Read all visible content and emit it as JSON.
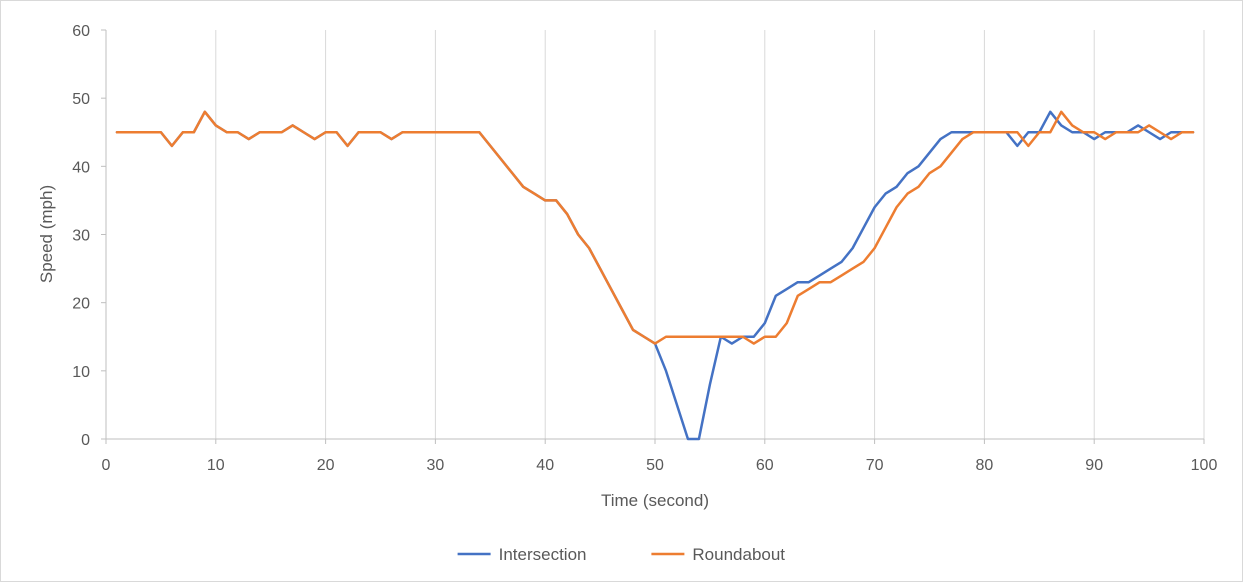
{
  "chart_data": {
    "type": "line",
    "xlabel": "Time (second)",
    "ylabel": "Speed (mph)",
    "xlim": [
      0,
      100
    ],
    "ylim": [
      0,
      60
    ],
    "xticks": [
      0,
      10,
      20,
      30,
      40,
      50,
      60,
      70,
      80,
      90,
      100
    ],
    "yticks": [
      0,
      10,
      20,
      30,
      40,
      50,
      60
    ],
    "grid": "vertical",
    "legend_position": "bottom",
    "series": [
      {
        "name": "Intersection",
        "color": "#4472c4",
        "x": [
          1,
          2,
          3,
          4,
          5,
          6,
          7,
          8,
          9,
          10,
          11,
          12,
          13,
          14,
          15,
          16,
          17,
          18,
          19,
          20,
          21,
          22,
          23,
          24,
          25,
          26,
          27,
          28,
          29,
          30,
          31,
          32,
          33,
          34,
          35,
          36,
          37,
          38,
          39,
          40,
          41,
          42,
          43,
          44,
          45,
          46,
          47,
          48,
          49,
          50,
          51,
          52,
          53,
          54,
          55,
          56,
          57,
          58,
          59,
          60,
          61,
          62,
          63,
          64,
          65,
          66,
          67,
          68,
          69,
          70,
          71,
          72,
          73,
          74,
          75,
          76,
          77,
          78,
          79,
          80,
          81,
          82,
          83,
          84,
          85,
          86,
          87,
          88,
          89,
          90,
          91,
          92,
          93,
          94,
          95,
          96,
          97,
          98,
          99
        ],
        "y": [
          45,
          45,
          45,
          45,
          45,
          43,
          45,
          45,
          48,
          46,
          45,
          45,
          44,
          45,
          45,
          45,
          46,
          45,
          44,
          45,
          45,
          43,
          45,
          45,
          45,
          44,
          45,
          45,
          45,
          45,
          45,
          45,
          45,
          45,
          43,
          41,
          39,
          37,
          36,
          35,
          35,
          33,
          30,
          28,
          25,
          22,
          19,
          16,
          15,
          14,
          10,
          5,
          0,
          0,
          8,
          15,
          14,
          15,
          15,
          17,
          21,
          22,
          23,
          23,
          24,
          25,
          26,
          28,
          31,
          34,
          36,
          37,
          39,
          40,
          42,
          44,
          45,
          45,
          45,
          45,
          45,
          45,
          43,
          45,
          45,
          48,
          46,
          45,
          45,
          44,
          45,
          45,
          45,
          46,
          45,
          44,
          45,
          45,
          45
        ]
      },
      {
        "name": "Roundabout",
        "color": "#ed7d31",
        "x": [
          1,
          2,
          3,
          4,
          5,
          6,
          7,
          8,
          9,
          10,
          11,
          12,
          13,
          14,
          15,
          16,
          17,
          18,
          19,
          20,
          21,
          22,
          23,
          24,
          25,
          26,
          27,
          28,
          29,
          30,
          31,
          32,
          33,
          34,
          35,
          36,
          37,
          38,
          39,
          40,
          41,
          42,
          43,
          44,
          45,
          46,
          47,
          48,
          49,
          50,
          51,
          52,
          53,
          54,
          55,
          56,
          57,
          58,
          59,
          60,
          61,
          62,
          63,
          64,
          65,
          66,
          67,
          68,
          69,
          70,
          71,
          72,
          73,
          74,
          75,
          76,
          77,
          78,
          79,
          80,
          81,
          82,
          83,
          84,
          85,
          86,
          87,
          88,
          89,
          90,
          91,
          92,
          93,
          94,
          95,
          96,
          97,
          98,
          99
        ],
        "y": [
          45,
          45,
          45,
          45,
          45,
          43,
          45,
          45,
          48,
          46,
          45,
          45,
          44,
          45,
          45,
          45,
          46,
          45,
          44,
          45,
          45,
          43,
          45,
          45,
          45,
          44,
          45,
          45,
          45,
          45,
          45,
          45,
          45,
          45,
          43,
          41,
          39,
          37,
          36,
          35,
          35,
          33,
          30,
          28,
          25,
          22,
          19,
          16,
          15,
          14,
          15,
          15,
          15,
          15,
          15,
          15,
          15,
          15,
          14,
          15,
          15,
          17,
          21,
          22,
          23,
          23,
          24,
          25,
          26,
          28,
          31,
          34,
          36,
          37,
          39,
          40,
          42,
          44,
          45,
          45,
          45,
          45,
          45,
          43,
          45,
          45,
          48,
          46,
          45,
          45,
          44,
          45,
          45,
          45,
          46,
          45,
          44,
          45,
          45
        ]
      }
    ]
  }
}
